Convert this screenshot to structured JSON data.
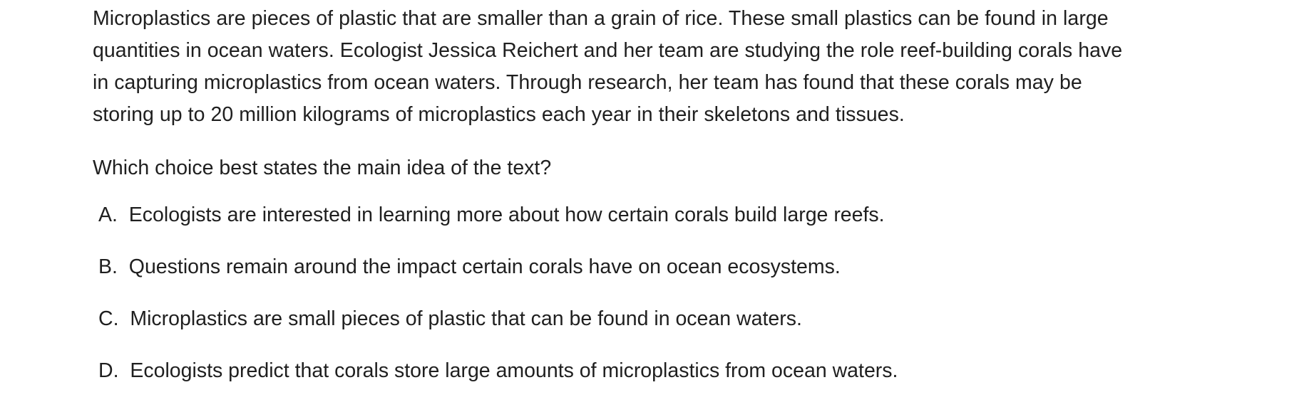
{
  "passage": {
    "lines": [
      "Microplastics are pieces of plastic that are smaller than a grain of rice. These small plastics can be found in large",
      "quantities in ocean waters. Ecologist Jessica Reichert and her team are studying the role reef-building corals have",
      "in capturing microplastics from ocean waters. Through research, her team has found that these corals may be",
      "storing up to 20 million kilograms of microplastics each year in their skeletons and tissues."
    ]
  },
  "question": {
    "text": "Which choice best states the main idea of the text?"
  },
  "choices": [
    {
      "letter": "A.",
      "text": "Ecologists are interested in learning more about how certain corals build large reefs."
    },
    {
      "letter": "B.",
      "text": "Questions remain around the impact certain corals have on ocean ecosystems."
    },
    {
      "letter": "C.",
      "text": "Microplastics are small pieces of plastic that can be found in ocean waters."
    },
    {
      "letter": "D.",
      "text": "Ecologists predict that corals store large amounts of microplastics from ocean waters."
    }
  ]
}
